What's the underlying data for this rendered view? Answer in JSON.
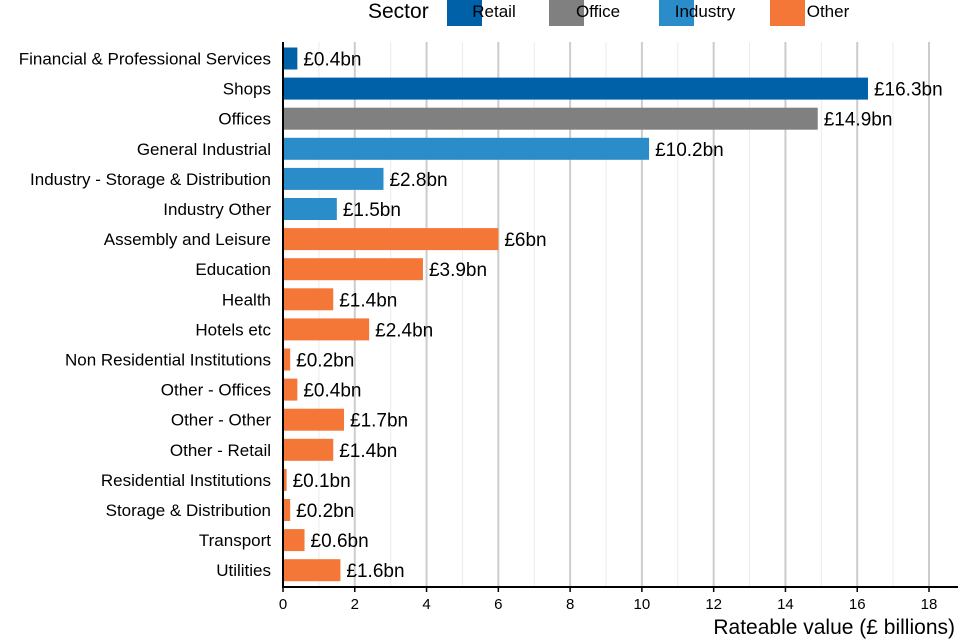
{
  "chart_data": {
    "type": "bar",
    "orientation": "horizontal",
    "xlabel": "Rateable value (£ billions)",
    "xlim": [
      0,
      18
    ],
    "x_ticks": [
      0,
      2,
      4,
      6,
      8,
      10,
      12,
      14,
      16,
      18
    ],
    "grid": true,
    "legend": {
      "title": "Sector",
      "placement": "top",
      "entries": [
        {
          "name": "Retail",
          "color": "#0061a9"
        },
        {
          "name": "Office",
          "color": "#808080"
        },
        {
          "name": "Industry",
          "color": "#2a8dca"
        },
        {
          "name": "Other",
          "color": "#f47738"
        }
      ]
    },
    "categories": [
      "Financial & Professional Services",
      "Shops",
      "Offices",
      "General Industrial",
      "Industry - Storage & Distribution",
      "Industry Other",
      "Assembly and Leisure",
      "Education",
      "Health",
      "Hotels etc",
      "Non Residential Institutions",
      "Other - Offices",
      "Other - Other",
      "Other - Retail",
      "Residential Institutions",
      "Storage & Distribution",
      "Transport",
      "Utilities"
    ],
    "values": [
      0.4,
      16.3,
      14.9,
      10.2,
      2.8,
      1.5,
      6,
      3.9,
      1.4,
      2.4,
      0.2,
      0.4,
      1.7,
      1.4,
      0.1,
      0.2,
      0.6,
      1.6
    ],
    "sectors": [
      "Retail",
      "Retail",
      "Office",
      "Industry",
      "Industry",
      "Industry",
      "Other",
      "Other",
      "Other",
      "Other",
      "Other",
      "Other",
      "Other",
      "Other",
      "Other",
      "Other",
      "Other",
      "Other"
    ],
    "data_labels": [
      "£0.4bn",
      "£16.3bn",
      "£14.9bn",
      "£10.2bn",
      "£2.8bn",
      "£1.5bn",
      "£6bn",
      "£3.9bn",
      "£1.4bn",
      "£2.4bn",
      "£0.2bn",
      "£0.4bn",
      "£1.7bn",
      "£1.4bn",
      "£0.1bn",
      "£0.2bn",
      "£0.6bn",
      "£1.6bn"
    ]
  }
}
